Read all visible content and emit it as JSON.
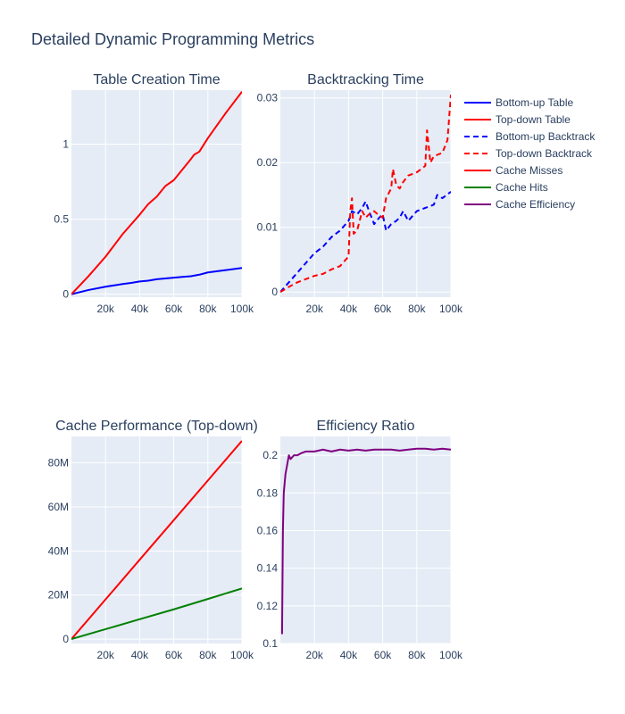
{
  "title": "Detailed Dynamic Programming Metrics",
  "colors": {
    "plot_bg": "#e5ecf6",
    "grid": "#ffffff",
    "text": "#2a3f5f",
    "blue": "#0000ff",
    "red": "#ff0000",
    "green": "#008000",
    "purple": "#800080"
  },
  "legend": {
    "placement": "right",
    "items": [
      {
        "label": "Bottom-up Table",
        "color": "#0000ff",
        "dash": false
      },
      {
        "label": "Top-down Table",
        "color": "#ff0000",
        "dash": false
      },
      {
        "label": "Bottom-up Backtrack",
        "color": "#0000ff",
        "dash": true
      },
      {
        "label": "Top-down Backtrack",
        "color": "#ff0000",
        "dash": true
      },
      {
        "label": "Cache Misses",
        "color": "#ff0000",
        "dash": false
      },
      {
        "label": "Cache Hits",
        "color": "#008000",
        "dash": false
      },
      {
        "label": "Cache Efficiency",
        "color": "#800080",
        "dash": false
      }
    ]
  },
  "chart_data": [
    {
      "type": "line",
      "title": "Table Creation Time",
      "xlim": [
        0,
        100000
      ],
      "ylim": [
        -0.02,
        1.36
      ],
      "xticks": [
        20000,
        40000,
        60000,
        80000,
        100000
      ],
      "xtick_labels": [
        "20k",
        "40k",
        "60k",
        "80k",
        "100k"
      ],
      "yticks": [
        0,
        0.5,
        1
      ],
      "ytick_labels": [
        "0",
        "0.5",
        "1"
      ],
      "grid": true,
      "series": [
        {
          "name": "Bottom-up Table",
          "color": "#0000ff",
          "dash": false,
          "x": [
            0,
            10000,
            20000,
            30000,
            35000,
            40000,
            45000,
            50000,
            60000,
            65000,
            70000,
            75000,
            80000,
            90000,
            100000
          ],
          "y": [
            0,
            0.028,
            0.05,
            0.068,
            0.075,
            0.085,
            0.09,
            0.1,
            0.11,
            0.115,
            0.12,
            0.13,
            0.145,
            0.16,
            0.175
          ]
        },
        {
          "name": "Top-down Table",
          "color": "#ff0000",
          "dash": false,
          "x": [
            0,
            5000,
            10000,
            20000,
            30000,
            40000,
            45000,
            50000,
            55000,
            60000,
            70000,
            72000,
            75000,
            80000,
            90000,
            100000
          ],
          "y": [
            0,
            0.06,
            0.12,
            0.25,
            0.4,
            0.53,
            0.6,
            0.65,
            0.72,
            0.76,
            0.9,
            0.93,
            0.95,
            1.04,
            1.2,
            1.35
          ]
        }
      ]
    },
    {
      "type": "line",
      "title": "Backtracking Time",
      "xlim": [
        0,
        100000
      ],
      "ylim": [
        -0.0008,
        0.0312
      ],
      "xticks": [
        20000,
        40000,
        60000,
        80000,
        100000
      ],
      "xtick_labels": [
        "20k",
        "40k",
        "60k",
        "80k",
        "100k"
      ],
      "yticks": [
        0,
        0.01,
        0.02,
        0.03
      ],
      "ytick_labels": [
        "0",
        "0.01",
        "0.02",
        "0.03"
      ],
      "grid": true,
      "series": [
        {
          "name": "Bottom-up Backtrack",
          "color": "#0000ff",
          "dash": true,
          "x": [
            0,
            5000,
            10000,
            15000,
            20000,
            25000,
            30000,
            35000,
            40000,
            42000,
            45000,
            48000,
            50000,
            52000,
            55000,
            58000,
            60000,
            62000,
            65000,
            68000,
            70000,
            72000,
            75000,
            80000,
            85000,
            90000,
            92000,
            95000,
            100000
          ],
          "y": [
            0,
            0.0015,
            0.003,
            0.0045,
            0.006,
            0.007,
            0.0085,
            0.0095,
            0.011,
            0.0125,
            0.012,
            0.013,
            0.014,
            0.0125,
            0.0105,
            0.0115,
            0.012,
            0.0095,
            0.0105,
            0.011,
            0.0115,
            0.0125,
            0.011,
            0.0125,
            0.013,
            0.0135,
            0.015,
            0.0145,
            0.0155
          ]
        },
        {
          "name": "Top-down Backtrack",
          "color": "#ff0000",
          "dash": true,
          "x": [
            0,
            5000,
            10000,
            15000,
            20000,
            25000,
            30000,
            35000,
            40000,
            41000,
            42000,
            43000,
            45000,
            48000,
            50000,
            52000,
            55000,
            58000,
            60000,
            62000,
            65000,
            66000,
            68000,
            70000,
            72000,
            75000,
            80000,
            85000,
            86000,
            88000,
            90000,
            95000,
            98000,
            100000
          ],
          "y": [
            0,
            0.0008,
            0.0015,
            0.002,
            0.0025,
            0.0028,
            0.0035,
            0.004,
            0.0055,
            0.0125,
            0.0145,
            0.009,
            0.0095,
            0.0125,
            0.0115,
            0.012,
            0.0125,
            0.0118,
            0.0115,
            0.0145,
            0.016,
            0.019,
            0.0165,
            0.016,
            0.017,
            0.018,
            0.0185,
            0.0195,
            0.025,
            0.02,
            0.021,
            0.0215,
            0.0235,
            0.0305
          ]
        }
      ]
    },
    {
      "type": "line",
      "title": "Cache Performance (Top-down)",
      "xlim": [
        0,
        100000
      ],
      "ylim": [
        -2000000,
        92000000
      ],
      "xticks": [
        20000,
        40000,
        60000,
        80000,
        100000
      ],
      "xtick_labels": [
        "20k",
        "40k",
        "60k",
        "80k",
        "100k"
      ],
      "yticks": [
        0,
        20000000,
        40000000,
        60000000,
        80000000
      ],
      "ytick_labels": [
        "0",
        "20M",
        "40M",
        "60M",
        "80M"
      ],
      "grid": true,
      "series": [
        {
          "name": "Cache Misses",
          "color": "#ff0000",
          "dash": false,
          "x": [
            0,
            20000,
            40000,
            60000,
            80000,
            100000
          ],
          "y": [
            0,
            18000000,
            36000000,
            54000000,
            72000000,
            90000000
          ]
        },
        {
          "name": "Cache Hits",
          "color": "#008000",
          "dash": false,
          "x": [
            0,
            20000,
            40000,
            60000,
            80000,
            100000
          ],
          "y": [
            0,
            4500000,
            9000000,
            13500000,
            18200000,
            23000000
          ]
        }
      ]
    },
    {
      "type": "line",
      "title": "Efficiency Ratio",
      "xlim": [
        0,
        100000
      ],
      "ylim": [
        0.1,
        0.21
      ],
      "xticks": [
        20000,
        40000,
        60000,
        80000,
        100000
      ],
      "xtick_labels": [
        "20k",
        "40k",
        "60k",
        "80k",
        "100k"
      ],
      "yticks": [
        0.1,
        0.12,
        0.14,
        0.16,
        0.18,
        0.2
      ],
      "ytick_labels": [
        "0.1",
        "0.12",
        "0.14",
        "0.16",
        "0.18",
        "0.2"
      ],
      "grid": true,
      "series": [
        {
          "name": "Cache Efficiency",
          "color": "#800080",
          "dash": false,
          "x": [
            1000,
            1500,
            2000,
            3000,
            4000,
            5000,
            6000,
            8000,
            10000,
            12000,
            15000,
            18000,
            20000,
            25000,
            30000,
            35000,
            40000,
            45000,
            50000,
            55000,
            60000,
            65000,
            70000,
            75000,
            80000,
            85000,
            90000,
            95000,
            100000
          ],
          "y": [
            0.105,
            0.16,
            0.18,
            0.19,
            0.195,
            0.2,
            0.198,
            0.2,
            0.2,
            0.201,
            0.202,
            0.202,
            0.202,
            0.203,
            0.202,
            0.203,
            0.2025,
            0.203,
            0.2025,
            0.203,
            0.203,
            0.203,
            0.2025,
            0.203,
            0.2035,
            0.2035,
            0.203,
            0.2035,
            0.203
          ]
        }
      ]
    }
  ]
}
